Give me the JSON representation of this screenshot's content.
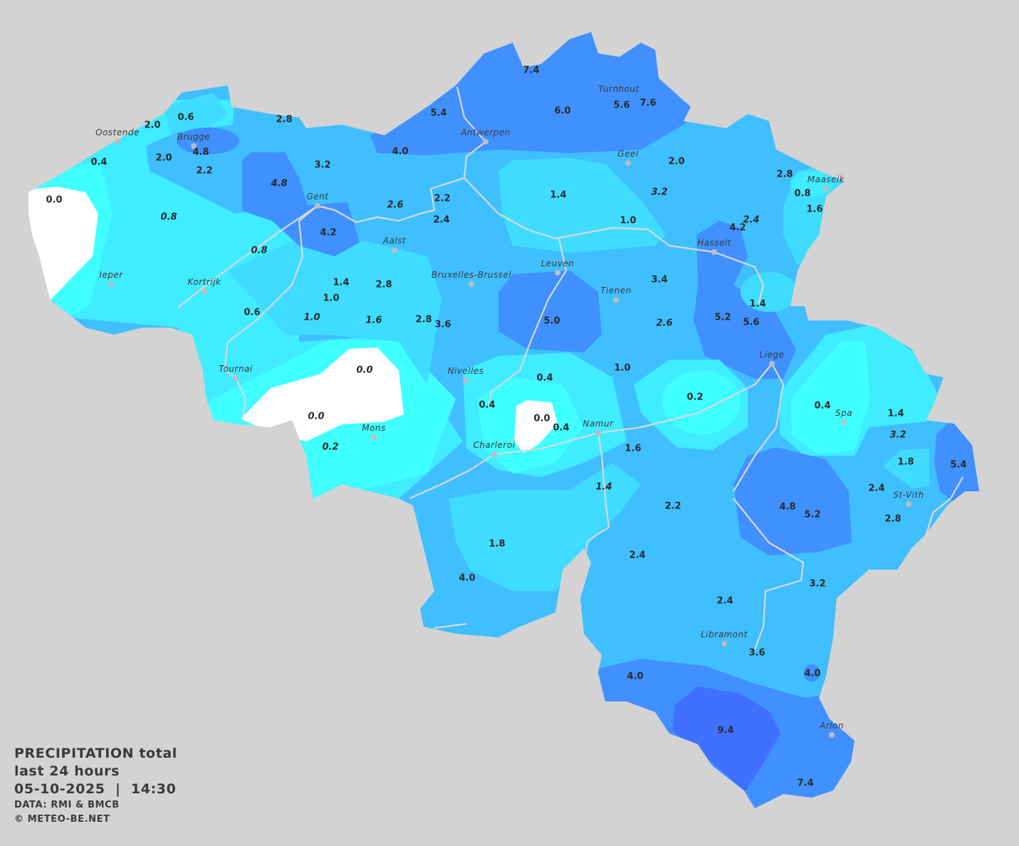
{
  "legend": {
    "title": "PRECIPITATION total",
    "period": "last 24 hours",
    "datetime": "05-10-2025  |  14:30",
    "source": "DATA: RMI & BMCB",
    "copyright": "© METEO-BE.NET"
  },
  "colors": {
    "background": "#d3d3d3",
    "zero": "#ffffff",
    "very_light": "#40ffff",
    "light": "#40ecff",
    "light_mid": "#40dcff",
    "mid": "#40bfff",
    "dark": "#4090ff",
    "darkest": "#4070ff",
    "rivers": "#d8d8d8"
  },
  "unit": "mm",
  "cities": [
    "Oostende",
    "Brugge",
    "Antwerpen",
    "Turnhout",
    "Geel",
    "Maaseik",
    "Gent",
    "Aalst",
    "Hasselt",
    "Leuven",
    "Ieper",
    "Kortrijk",
    "Bruxelles-Brussel",
    "Tienen",
    "Liege",
    "Tournai",
    "Nivelles",
    "Spa",
    "Namur",
    "Mons",
    "Charleroi",
    "St-Vith",
    "Libramont",
    "Arlon"
  ],
  "values": [
    {
      "value": "0.6",
      "italic": false
    },
    {
      "value": "2.0",
      "italic": false
    },
    {
      "value": "4.8",
      "italic": false
    },
    {
      "value": "2.8",
      "italic": false
    },
    {
      "value": "0.4",
      "italic": false
    },
    {
      "value": "2.0",
      "italic": false
    },
    {
      "value": "2.2",
      "italic": false
    },
    {
      "value": "3.2",
      "italic": false
    },
    {
      "value": "4.8",
      "italic": true
    },
    {
      "value": "0.0",
      "italic": false
    },
    {
      "value": "0.8",
      "italic": true
    },
    {
      "value": "5.4",
      "italic": false
    },
    {
      "value": "4.0",
      "italic": false
    },
    {
      "value": "7.4",
      "italic": false
    },
    {
      "value": "6.0",
      "italic": false
    },
    {
      "value": "5.6",
      "italic": false
    },
    {
      "value": "7.6",
      "italic": false
    },
    {
      "value": "2.0",
      "italic": false
    },
    {
      "value": "2.8",
      "italic": false
    },
    {
      "value": "0.8",
      "italic": false
    },
    {
      "value": "1.6",
      "italic": false
    },
    {
      "value": "1.4",
      "italic": false
    },
    {
      "value": "3.2",
      "italic": true
    },
    {
      "value": "2.2",
      "italic": false
    },
    {
      "value": "2.6",
      "italic": true
    },
    {
      "value": "2.4",
      "italic": false
    },
    {
      "value": "1.0",
      "italic": false
    },
    {
      "value": "2.4",
      "italic": true
    },
    {
      "value": "4.2",
      "italic": false
    },
    {
      "value": "4.2",
      "italic": false
    },
    {
      "value": "0.8",
      "italic": true
    },
    {
      "value": "3.4",
      "italic": false
    },
    {
      "value": "1.4",
      "italic": false
    },
    {
      "value": "2.8",
      "italic": false
    },
    {
      "value": "1.0",
      "italic": false
    },
    {
      "value": "1.4",
      "italic": false
    },
    {
      "value": "0.6",
      "italic": false
    },
    {
      "value": "1.0",
      "italic": true
    },
    {
      "value": "1.6",
      "italic": true
    },
    {
      "value": "2.8",
      "italic": false
    },
    {
      "value": "3.6",
      "italic": false
    },
    {
      "value": "5.0",
      "italic": false
    },
    {
      "value": "2.6",
      "italic": true
    },
    {
      "value": "5.2",
      "italic": false
    },
    {
      "value": "5.6",
      "italic": false
    },
    {
      "value": "0.0",
      "italic": true
    },
    {
      "value": "1.0",
      "italic": false
    },
    {
      "value": "0.4",
      "italic": false
    },
    {
      "value": "0.2",
      "italic": false
    },
    {
      "value": "0.4",
      "italic": false
    },
    {
      "value": "0.0",
      "italic": true
    },
    {
      "value": "0.0",
      "italic": false
    },
    {
      "value": "0.4",
      "italic": false
    },
    {
      "value": "0.4",
      "italic": false
    },
    {
      "value": "1.4",
      "italic": false
    },
    {
      "value": "3.2",
      "italic": true
    },
    {
      "value": "0.2",
      "italic": true
    },
    {
      "value": "1.6",
      "italic": false
    },
    {
      "value": "1.8",
      "italic": false
    },
    {
      "value": "5.4",
      "italic": false
    },
    {
      "value": "1.4",
      "italic": true
    },
    {
      "value": "2.4",
      "italic": false
    },
    {
      "value": "2.2",
      "italic": false
    },
    {
      "value": "4.8",
      "italic": false
    },
    {
      "value": "5.2",
      "italic": false
    },
    {
      "value": "2.8",
      "italic": false
    },
    {
      "value": "1.8",
      "italic": false
    },
    {
      "value": "2.4",
      "italic": false
    },
    {
      "value": "4.0",
      "italic": false
    },
    {
      "value": "3.2",
      "italic": false
    },
    {
      "value": "2.4",
      "italic": false
    },
    {
      "value": "3.6",
      "italic": false
    },
    {
      "value": "4.0",
      "italic": false
    },
    {
      "value": "4.0",
      "italic": false
    },
    {
      "value": "9.4",
      "italic": false
    },
    {
      "value": "7.4",
      "italic": false
    }
  ]
}
